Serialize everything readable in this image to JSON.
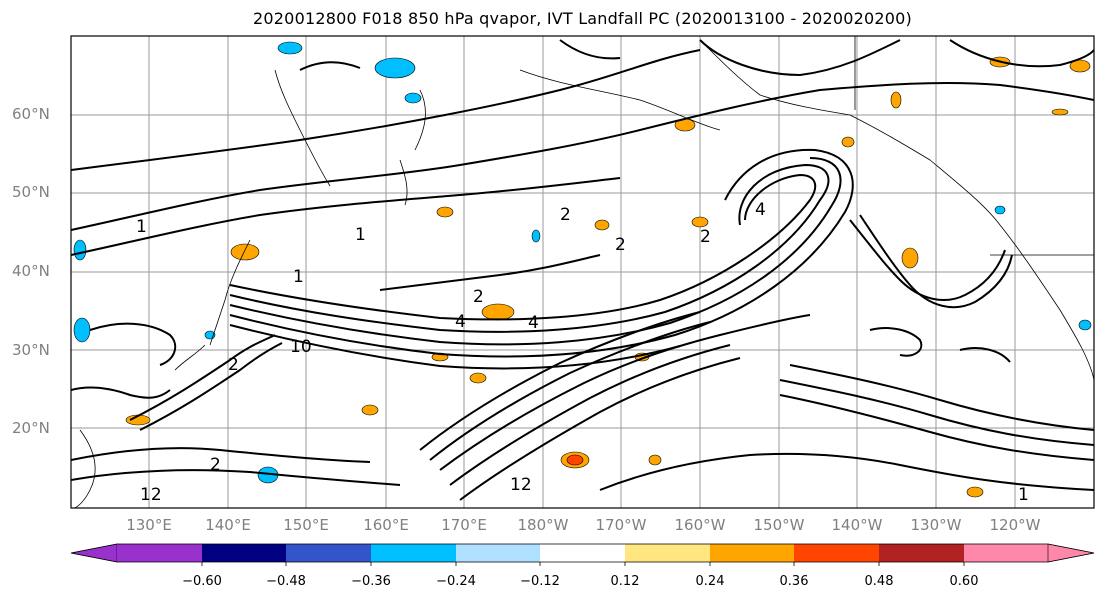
{
  "title": "2020012800 F018 850 hPa qvapor, IVT Landfall PC (2020013100 - 2020020200)",
  "map": {
    "lat_labels": [
      "60°N",
      "50°N",
      "40°N",
      "30°N",
      "20°N"
    ],
    "lon_labels": [
      "130°E",
      "140°E",
      "150°E",
      "160°E",
      "170°E",
      "180°W",
      "170°W",
      "160°W",
      "150°W",
      "140°W",
      "130°W",
      "120°W"
    ],
    "contour_labels": [
      "1",
      "1",
      "1",
      "2",
      "2",
      "2",
      "2",
      "4",
      "4",
      "4",
      "10",
      "2",
      "2",
      "12",
      "12",
      "1"
    ],
    "anomaly_colors": {
      "negative": "#00bfff",
      "negative_light": "#b0e0ff",
      "positive": "#ffa500",
      "positive_light": "#ffe680",
      "strong_positive": "#ff4500"
    }
  },
  "colorbar": {
    "colors": [
      "#9932cc",
      "#000080",
      "#3355cc",
      "#00bfff",
      "#b0e0ff",
      "#ffffff",
      "#ffe680",
      "#ffa500",
      "#ff4500",
      "#b22222",
      "#ff88aa"
    ],
    "tick_labels": [
      "−0.60",
      "−0.48",
      "−0.36",
      "−0.24",
      "−0.12",
      "0.12",
      "0.24",
      "0.36",
      "0.48",
      "0.60"
    ]
  }
}
